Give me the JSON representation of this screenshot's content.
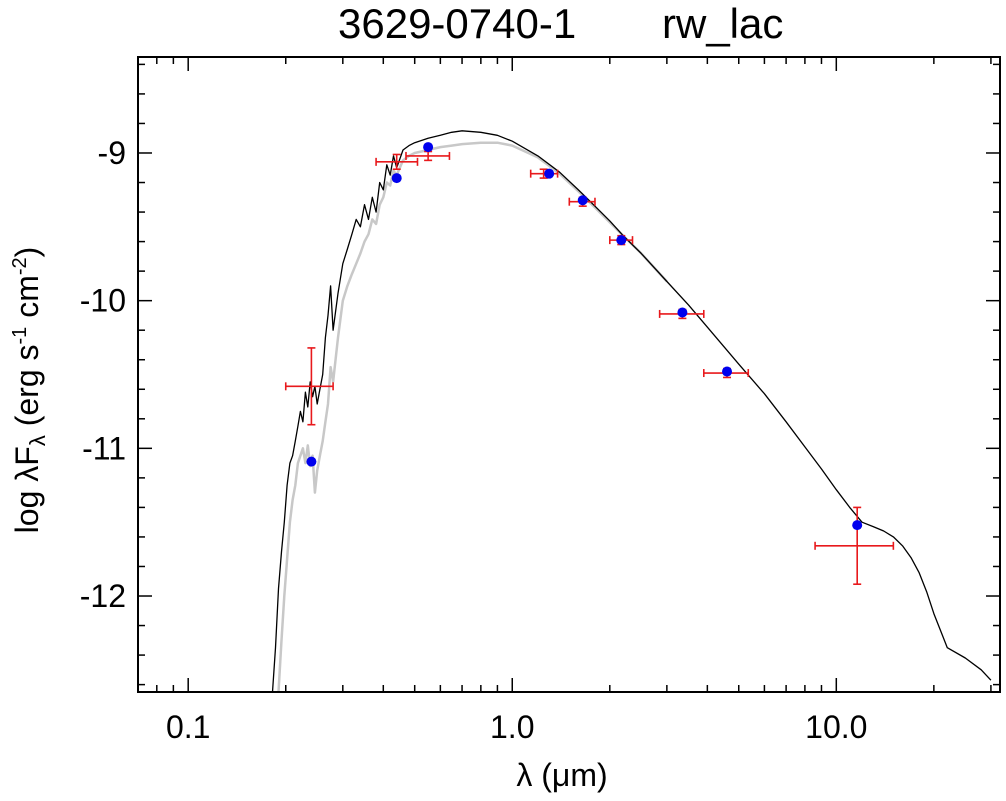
{
  "chart_data": {
    "type": "scatter",
    "title_left": "3629-0740-1",
    "title_right": "rw_lac",
    "xlabel": "λ (μm)",
    "ylabel": {
      "prefix": "log λF",
      "sub": "λ",
      "open": " (erg s",
      "sup1": "-1",
      "mid": " cm",
      "sup2": "-2",
      "close": ")"
    },
    "x_scale": "log",
    "xlim": [
      0.07,
      32
    ],
    "ylim": [
      -12.65,
      -8.35
    ],
    "x_ticks": [
      {
        "v": 0.1,
        "label": "0.1"
      },
      {
        "v": 1.0,
        "label": "1.0"
      },
      {
        "v": 10.0,
        "label": "10.0"
      }
    ],
    "y_ticks": [
      {
        "v": -9,
        "label": "-9"
      },
      {
        "v": -10,
        "label": "-10"
      },
      {
        "v": -11,
        "label": "-11"
      },
      {
        "v": -12,
        "label": "-12"
      }
    ],
    "colors": {
      "model_black": "#000000",
      "model_grey": "#c8c8c8",
      "observed": "#e8191c",
      "synthetic": "#0000ee"
    },
    "series": [
      {
        "kind": "model",
        "color": "#000000",
        "x": [
          0.182,
          0.186,
          0.19,
          0.194,
          0.198,
          0.202,
          0.206,
          0.21,
          0.214,
          0.218,
          0.222,
          0.226,
          0.23,
          0.234,
          0.238,
          0.242,
          0.246,
          0.25,
          0.255,
          0.26,
          0.265,
          0.27,
          0.275,
          0.28,
          0.29,
          0.3,
          0.31,
          0.32,
          0.33,
          0.34,
          0.35,
          0.36,
          0.37,
          0.38,
          0.39,
          0.4,
          0.41,
          0.42,
          0.43,
          0.44,
          0.46,
          0.48,
          0.5,
          0.55,
          0.6,
          0.65,
          0.7,
          0.8,
          0.9,
          1.0,
          1.2,
          1.4,
          1.6,
          1.8,
          2.0,
          2.2,
          2.5,
          3.0,
          3.5,
          4.0,
          5.0,
          6.0,
          7.0,
          8.0,
          9.0,
          10.0,
          11.0,
          12.0,
          13.0,
          14.0,
          15.0,
          16.0,
          17.0,
          18.0,
          19.0,
          20.0,
          22.0,
          25.0,
          28.0,
          30.0
        ],
        "y": [
          -12.65,
          -12.35,
          -11.95,
          -11.7,
          -11.5,
          -11.25,
          -11.1,
          -11.05,
          -10.95,
          -10.85,
          -10.75,
          -10.82,
          -10.62,
          -10.72,
          -10.55,
          -10.65,
          -10.58,
          -10.7,
          -10.6,
          -10.5,
          -10.25,
          -10.1,
          -9.9,
          -10.2,
          -9.95,
          -9.75,
          -9.65,
          -9.55,
          -9.45,
          -9.5,
          -9.35,
          -9.45,
          -9.3,
          -9.4,
          -9.2,
          -9.25,
          -9.08,
          -9.15,
          -9.02,
          -9.1,
          -8.98,
          -8.95,
          -8.93,
          -8.9,
          -8.88,
          -8.86,
          -8.85,
          -8.86,
          -8.88,
          -8.92,
          -9.02,
          -9.13,
          -9.25,
          -9.36,
          -9.46,
          -9.56,
          -9.68,
          -9.87,
          -10.03,
          -10.18,
          -10.43,
          -10.63,
          -10.82,
          -10.99,
          -11.14,
          -11.28,
          -11.4,
          -11.5,
          -11.53,
          -11.56,
          -11.6,
          -11.66,
          -11.74,
          -11.84,
          -11.97,
          -12.12,
          -12.35,
          -12.42,
          -12.5,
          -12.57
        ]
      },
      {
        "kind": "model",
        "color": "#c8c8c8",
        "x": [
          0.19,
          0.194,
          0.198,
          0.202,
          0.206,
          0.21,
          0.214,
          0.218,
          0.222,
          0.226,
          0.23,
          0.234,
          0.238,
          0.242,
          0.246,
          0.25,
          0.255,
          0.26,
          0.265,
          0.27,
          0.275,
          0.28,
          0.29,
          0.3,
          0.31,
          0.32,
          0.33,
          0.34,
          0.35,
          0.36,
          0.37,
          0.38,
          0.39,
          0.4,
          0.41,
          0.42,
          0.43,
          0.44,
          0.46,
          0.48,
          0.5,
          0.55,
          0.6,
          0.65,
          0.7,
          0.8,
          0.9,
          1.0,
          1.2,
          1.4,
          1.6,
          1.8,
          2.0,
          2.2,
          2.5,
          3.0
        ],
        "y": [
          -12.65,
          -12.3,
          -12.0,
          -11.75,
          -11.5,
          -11.35,
          -11.25,
          -11.1,
          -11.05,
          -11.0,
          -11.1,
          -10.98,
          -11.12,
          -11.05,
          -11.3,
          -11.15,
          -11.05,
          -10.95,
          -10.82,
          -10.7,
          -10.45,
          -10.55,
          -10.25,
          -10.0,
          -9.9,
          -9.82,
          -9.75,
          -9.68,
          -9.6,
          -9.55,
          -9.45,
          -9.48,
          -9.35,
          -9.3,
          -9.2,
          -9.22,
          -9.12,
          -9.15,
          -9.05,
          -9.02,
          -9.0,
          -8.98,
          -8.96,
          -8.95,
          -8.94,
          -8.93,
          -8.93,
          -8.95,
          -9.03,
          -9.14,
          -9.26,
          -9.37,
          -9.47,
          -9.56,
          -9.68,
          -9.87
        ]
      }
    ],
    "observed": [
      {
        "x": 0.24,
        "y": -10.58,
        "xlo": 0.2,
        "xhi": 0.28,
        "ylo": -10.84,
        "yhi": -10.32
      },
      {
        "x": 0.44,
        "y": -9.06,
        "xlo": 0.38,
        "xhi": 0.51,
        "ylo": -9.11,
        "yhi": -9.01
      },
      {
        "x": 0.55,
        "y": -9.02,
        "xlo": 0.47,
        "xhi": 0.64,
        "ylo": -9.05,
        "yhi": -8.99
      },
      {
        "x": 1.25,
        "y": -9.14,
        "xlo": 1.14,
        "xhi": 1.38,
        "ylo": -9.17,
        "yhi": -9.11
      },
      {
        "x": 1.65,
        "y": -9.33,
        "xlo": 1.5,
        "xhi": 1.8,
        "ylo": -9.36,
        "yhi": -9.3
      },
      {
        "x": 2.17,
        "y": -9.59,
        "xlo": 2.0,
        "xhi": 2.35,
        "ylo": -9.62,
        "yhi": -9.56
      },
      {
        "x": 3.35,
        "y": -10.09,
        "xlo": 2.85,
        "xhi": 3.9,
        "ylo": -10.12,
        "yhi": -10.06
      },
      {
        "x": 4.6,
        "y": -10.49,
        "xlo": 3.9,
        "xhi": 5.35,
        "ylo": -10.52,
        "yhi": -10.46
      },
      {
        "x": 11.6,
        "y": -11.66,
        "xlo": 8.6,
        "xhi": 15.0,
        "ylo": -11.92,
        "yhi": -11.4
      }
    ],
    "synthetic": [
      {
        "x": 0.24,
        "y": -11.09
      },
      {
        "x": 0.44,
        "y": -9.17
      },
      {
        "x": 0.55,
        "y": -8.96
      },
      {
        "x": 1.3,
        "y": -9.14
      },
      {
        "x": 1.65,
        "y": -9.32
      },
      {
        "x": 2.17,
        "y": -9.59
      },
      {
        "x": 3.35,
        "y": -10.08
      },
      {
        "x": 4.6,
        "y": -10.48
      },
      {
        "x": 11.6,
        "y": -11.52
      }
    ]
  }
}
